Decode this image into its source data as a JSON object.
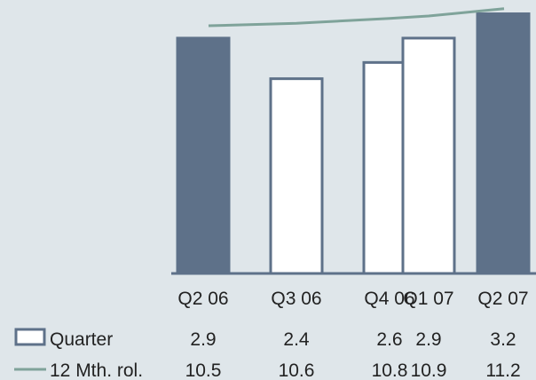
{
  "chart_data": {
    "type": "bar",
    "categories": [
      "Q2 06",
      "Q3 06",
      "Q4 06",
      "Q1 07",
      "Q2 07"
    ],
    "series": [
      {
        "name": "Quarter",
        "type": "bar",
        "values": [
          2.9,
          2.4,
          2.6,
          2.9,
          3.2
        ],
        "highlighted": [
          true,
          false,
          false,
          false,
          true
        ]
      },
      {
        "name": "12 Mth. rol.",
        "type": "line",
        "values": [
          10.5,
          10.6,
          10.8,
          10.9,
          11.2
        ]
      }
    ],
    "colors": {
      "background": "#dfe6ea",
      "bar_fill_highlight": "#5e7189",
      "bar_fill_plain": "#ffffff",
      "bar_stroke": "#5e7189",
      "line": "#7fa39a",
      "baseline": "#5e7189"
    }
  }
}
